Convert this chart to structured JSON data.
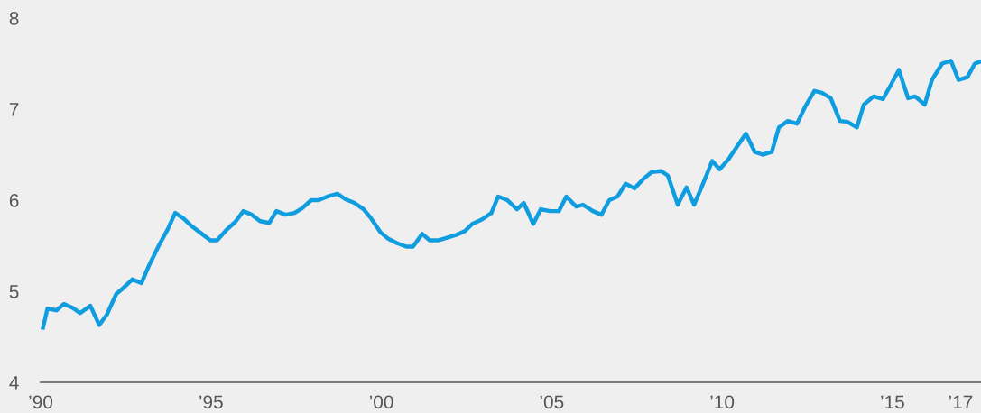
{
  "chart_data": {
    "type": "line",
    "x": [
      1990.07,
      1990.2,
      1990.47,
      1990.68,
      1990.93,
      1991.16,
      1991.46,
      1991.72,
      1991.94,
      1992.22,
      1992.44,
      1992.69,
      1992.96,
      1993.19,
      1993.48,
      1993.73,
      1993.95,
      1994.19,
      1994.45,
      1994.7,
      1994.98,
      1995.18,
      1995.47,
      1995.71,
      1995.95,
      1996.2,
      1996.44,
      1996.71,
      1996.92,
      1997.19,
      1997.45,
      1997.67,
      1997.94,
      1998.16,
      1998.42,
      1998.71,
      1998.95,
      1999.21,
      1999.48,
      1999.7,
      1999.97,
      2000.19,
      2000.45,
      2000.73,
      2000.93,
      2001.2,
      2001.42,
      2001.69,
      2001.95,
      2002.21,
      2002.45,
      2002.67,
      2002.96,
      2003.23,
      2003.43,
      2003.7,
      2003.98,
      2004.18,
      2004.46,
      2004.68,
      2004.95,
      2005.21,
      2005.43,
      2005.72,
      2005.92,
      2006.21,
      2006.46,
      2006.69,
      2006.93,
      2007.17,
      2007.43,
      2007.71,
      2007.94,
      2008.21,
      2008.41,
      2008.7,
      2008.96,
      2009.18,
      2009.44,
      2009.71,
      2009.93,
      2010.19,
      2010.44,
      2010.7,
      2010.96,
      2011.19,
      2011.46,
      2011.67,
      2011.93,
      2012.2,
      2012.43,
      2012.71,
      2012.93,
      2013.19,
      2013.46,
      2013.68,
      2013.96,
      2014.16,
      2014.45,
      2014.72,
      2014.96,
      2015.19,
      2015.46,
      2015.66,
      2015.95,
      2016.16,
      2016.46,
      2016.72,
      2016.94,
      2017.2,
      2017.42,
      2017.57
    ],
    "series": [
      {
        "color": "#0f9de0",
        "values": [
          4.6,
          4.81,
          4.79,
          4.86,
          4.82,
          4.76,
          4.84,
          4.63,
          4.74,
          4.97,
          5.04,
          5.13,
          5.09,
          5.29,
          5.51,
          5.68,
          5.86,
          5.8,
          5.71,
          5.64,
          5.56,
          5.56,
          5.68,
          5.76,
          5.88,
          5.84,
          5.77,
          5.75,
          5.88,
          5.84,
          5.86,
          5.91,
          6.0,
          6.0,
          6.04,
          6.07,
          6.01,
          5.97,
          5.9,
          5.8,
          5.65,
          5.58,
          5.53,
          5.49,
          5.49,
          5.63,
          5.56,
          5.56,
          5.59,
          5.62,
          5.66,
          5.74,
          5.79,
          5.86,
          6.04,
          6.0,
          5.9,
          5.97,
          5.74,
          5.9,
          5.88,
          5.88,
          6.04,
          5.93,
          5.95,
          5.88,
          5.84,
          6.0,
          6.04,
          6.18,
          6.13,
          6.24,
          6.31,
          6.32,
          6.27,
          5.95,
          6.14,
          5.95,
          6.18,
          6.43,
          6.34,
          6.45,
          6.59,
          6.73,
          6.53,
          6.5,
          6.53,
          6.8,
          6.87,
          6.84,
          7.02,
          7.2,
          7.18,
          7.12,
          6.87,
          6.86,
          6.8,
          7.05,
          7.14,
          7.11,
          7.27,
          7.43,
          7.12,
          7.14,
          7.05,
          7.32,
          7.5,
          7.53,
          7.32,
          7.35,
          7.5,
          7.52
        ]
      }
    ],
    "xlim": [
      1990,
      2017.6
    ],
    "ylim": [
      4,
      8
    ],
    "xticks": [
      {
        "value": 1990,
        "label": "’90"
      },
      {
        "value": 1995,
        "label": "’95"
      },
      {
        "value": 2000,
        "label": "’00"
      },
      {
        "value": 2005,
        "label": "’05"
      },
      {
        "value": 2010,
        "label": "’10"
      },
      {
        "value": 2015,
        "label": "’15"
      },
      {
        "value": 2017,
        "label": "’17"
      }
    ],
    "yticks": [
      4,
      5,
      6,
      7,
      8
    ],
    "grid": false,
    "marker": "none",
    "line_style": "solid"
  }
}
